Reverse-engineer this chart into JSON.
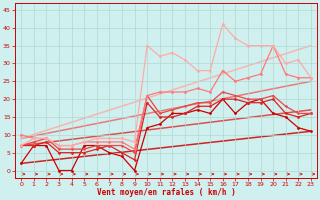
{
  "title": "",
  "xlabel": "Vent moyen/en rafales ( km/h )",
  "bg_color": "#cff0ee",
  "grid_color": "#b0d8d0",
  "x_ticks": [
    0,
    1,
    2,
    3,
    4,
    5,
    6,
    7,
    8,
    9,
    10,
    11,
    12,
    13,
    14,
    15,
    16,
    17,
    18,
    19,
    20,
    21,
    22,
    23
  ],
  "y_ticks": [
    0,
    5,
    10,
    15,
    20,
    25,
    30,
    35,
    40,
    45
  ],
  "ylim": [
    -2,
    47
  ],
  "xlim": [
    -0.5,
    23.5
  ],
  "series_data": [
    {
      "x": [
        0,
        1,
        2,
        3,
        4,
        5,
        6,
        7,
        8,
        9,
        10,
        11,
        12,
        13,
        14,
        15,
        16,
        17,
        18,
        19,
        20,
        21,
        22,
        23
      ],
      "y": [
        2,
        7,
        7,
        0,
        0,
        7,
        7,
        5,
        4,
        0,
        12,
        13,
        16,
        16,
        17,
        16,
        20,
        16,
        19,
        20,
        16,
        15,
        12,
        11
      ],
      "color": "#cc0000",
      "lw": 0.9,
      "marker": "o",
      "ms": 2.0
    },
    {
      "x": [
        0,
        1,
        2,
        3,
        4,
        5,
        6,
        7,
        8,
        9,
        10,
        11,
        12,
        13,
        14,
        15,
        16,
        17,
        18,
        19,
        20,
        21,
        22,
        23
      ],
      "y": [
        7,
        7,
        8,
        5,
        5,
        5,
        6,
        7,
        5,
        3,
        19,
        15,
        15,
        16,
        18,
        18,
        20,
        20,
        19,
        19,
        20,
        16,
        15,
        16
      ],
      "color": "#dd2222",
      "lw": 0.9,
      "marker": "o",
      "ms": 2.0
    },
    {
      "x": [
        0,
        1,
        2,
        3,
        4,
        5,
        6,
        7,
        8,
        9,
        10,
        11,
        12,
        13,
        14,
        15,
        16,
        17,
        18,
        19,
        20,
        21,
        22,
        23
      ],
      "y": [
        7,
        8,
        9,
        6,
        6,
        6,
        7,
        7,
        7,
        5,
        21,
        16,
        17,
        18,
        19,
        19,
        22,
        21,
        20,
        20,
        21,
        18,
        16,
        16
      ],
      "color": "#ee4444",
      "lw": 0.9,
      "marker": "o",
      "ms": 1.8
    },
    {
      "x": [
        0,
        1,
        2,
        3,
        4,
        5,
        6,
        7,
        8,
        9,
        10,
        11,
        12,
        13,
        14,
        15,
        16,
        17,
        18,
        19,
        20,
        21,
        22,
        23
      ],
      "y": [
        10,
        9,
        9,
        7,
        7,
        8,
        8,
        8,
        8,
        6,
        21,
        22,
        22,
        22,
        23,
        22,
        28,
        25,
        26,
        27,
        35,
        27,
        26,
        26
      ],
      "color": "#ff7777",
      "lw": 0.9,
      "marker": "o",
      "ms": 2.0
    },
    {
      "x": [
        0,
        1,
        2,
        3,
        4,
        5,
        6,
        7,
        8,
        9,
        10,
        11,
        12,
        13,
        14,
        15,
        16,
        17,
        18,
        19,
        20,
        21,
        22,
        23
      ],
      "y": [
        7,
        9,
        9,
        7,
        7,
        8,
        9,
        9,
        9,
        8,
        35,
        32,
        33,
        31,
        28,
        28,
        41,
        37,
        35,
        35,
        35,
        30,
        31,
        26
      ],
      "color": "#ffaaaa",
      "lw": 0.9,
      "marker": "o",
      "ms": 2.0
    }
  ],
  "trend_lines": [
    {
      "x": [
        0,
        23
      ],
      "y": [
        2,
        11
      ],
      "color": "#cc0000",
      "lw": 1.1
    },
    {
      "x": [
        0,
        23
      ],
      "y": [
        7,
        17
      ],
      "color": "#dd3333",
      "lw": 1.1
    },
    {
      "x": [
        0,
        23
      ],
      "y": [
        9,
        25
      ],
      "color": "#ee6666",
      "lw": 1.1
    },
    {
      "x": [
        0,
        23
      ],
      "y": [
        9,
        35
      ],
      "color": "#ffaaaa",
      "lw": 1.1
    }
  ]
}
